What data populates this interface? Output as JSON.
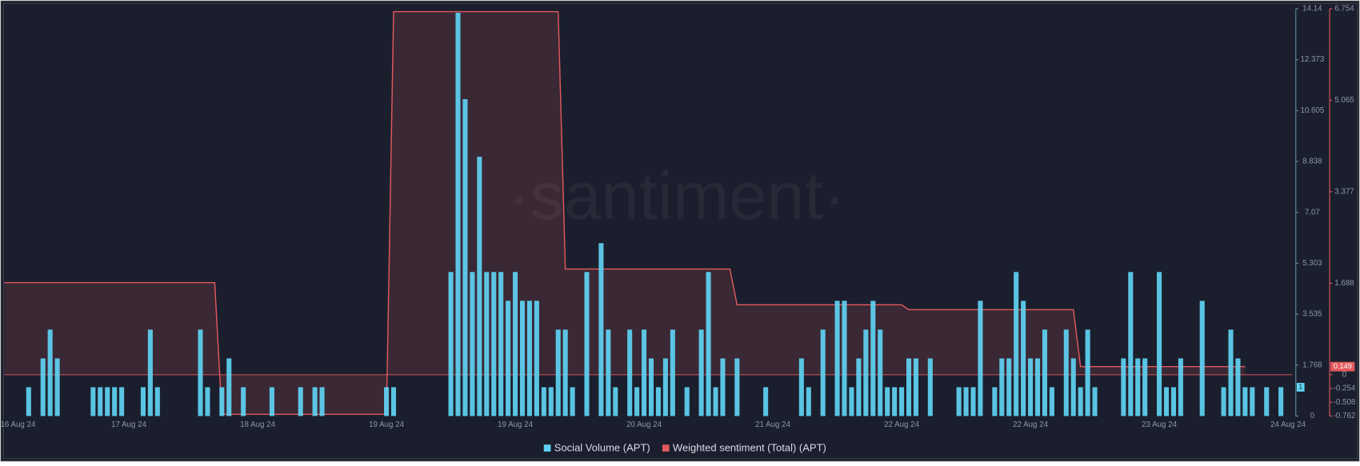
{
  "chart_data": {
    "type": "bar",
    "watermark": "·santiment·",
    "xlim": [
      -3.4,
      176.6
    ],
    "xticks": [
      {
        "value": -1.5,
        "label": "16 Aug 24"
      },
      {
        "value": 14,
        "label": "17 Aug 24"
      },
      {
        "value": 32,
        "label": "18 Aug 24"
      },
      {
        "value": 50,
        "label": "19 Aug 24"
      },
      {
        "value": 68,
        "label": "19 Aug 24"
      },
      {
        "value": 86,
        "label": "20 Aug 24"
      },
      {
        "value": 104,
        "label": "21 Aug 24"
      },
      {
        "value": 122,
        "label": "22 Aug 24"
      },
      {
        "value": 140,
        "label": "22 Aug 24"
      },
      {
        "value": 158,
        "label": "23 Aug 24"
      },
      {
        "value": 176,
        "label": "24 Aug 24"
      }
    ],
    "ylim": [
      0,
      14.14
    ],
    "yticks": [
      0,
      1.768,
      3.535,
      5.303,
      7.07,
      8.838,
      10.605,
      12.373,
      14.14
    ],
    "y2lim": [
      -0.762,
      6.754
    ],
    "y2ticks": [
      -0.762,
      -0.508,
      -0.254,
      0,
      1.688,
      3.377,
      5.065,
      6.754
    ],
    "series": [
      {
        "name": "Social Volume (APT)",
        "type": "bar",
        "color": "#5fd3f3",
        "current_value": 1,
        "x": [
          0,
          2,
          3,
          4,
          9,
          10,
          11,
          12,
          13,
          16,
          17,
          18,
          24,
          25,
          27,
          28,
          30,
          34,
          38,
          40,
          41,
          50,
          51,
          59,
          60,
          61,
          62,
          63,
          64,
          65,
          66,
          67,
          68,
          69,
          70,
          71,
          72,
          73,
          74,
          75,
          76,
          78,
          80,
          81,
          82,
          84,
          85,
          86,
          87,
          88,
          89,
          90,
          92,
          94,
          95,
          96,
          97,
          99,
          103,
          108,
          109,
          111,
          113,
          114,
          115,
          116,
          117,
          118,
          119,
          120,
          121,
          122,
          123,
          124,
          126,
          130,
          131,
          132,
          133,
          135,
          136,
          137,
          138,
          139,
          140,
          141,
          142,
          143,
          145,
          146,
          147,
          148,
          149,
          153,
          154,
          155,
          156,
          158,
          159,
          160,
          161,
          164,
          167,
          168,
          169,
          170,
          171,
          173,
          175
        ],
        "values": [
          1,
          2,
          3,
          2,
          1,
          1,
          1,
          1,
          1,
          1,
          3,
          1,
          3,
          1,
          1,
          2,
          1,
          1,
          1,
          1,
          1,
          1,
          1,
          5,
          14,
          11,
          5,
          9,
          5,
          5,
          5,
          4,
          5,
          4,
          4,
          4,
          1,
          1,
          3,
          3,
          1,
          5,
          6,
          3,
          1,
          3,
          1,
          3,
          2,
          1,
          2,
          3,
          1,
          3,
          5,
          1,
          2,
          2,
          1,
          2,
          1,
          3,
          4,
          4,
          1,
          2,
          3,
          4,
          3,
          1,
          1,
          1,
          2,
          2,
          2,
          1,
          1,
          1,
          4,
          1,
          2,
          2,
          5,
          4,
          2,
          2,
          3,
          1,
          3,
          2,
          1,
          3,
          1,
          2,
          5,
          2,
          2,
          5,
          1,
          1,
          2,
          4,
          1,
          3,
          2,
          1,
          1,
          1,
          1
        ]
      },
      {
        "name": "Weighted sentiment (Total) (APT)",
        "type": "line",
        "axis": "y2",
        "color": "#e35a5e",
        "current_value": 0.149,
        "x": [
          -3.4,
          26,
          27,
          50,
          51,
          74,
          75,
          98,
          99,
          122,
          123,
          146,
          147,
          170
        ],
        "values": [
          1.7,
          1.7,
          -0.73,
          -0.73,
          6.7,
          6.7,
          1.95,
          1.95,
          1.29,
          1.29,
          1.2,
          1.2,
          0.149,
          0.149
        ]
      }
    ]
  }
}
